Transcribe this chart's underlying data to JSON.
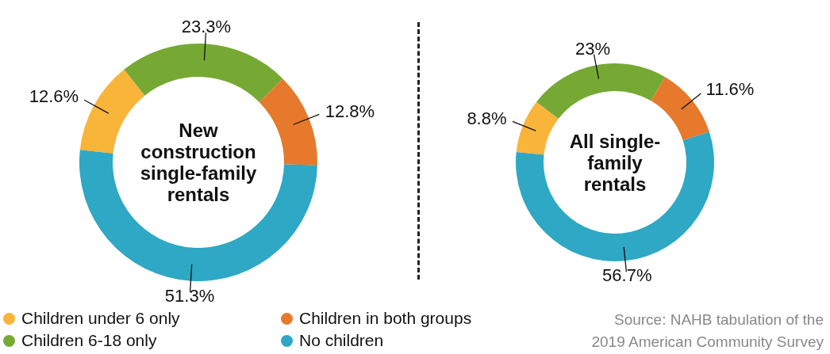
{
  "chart_data": [
    {
      "type": "donut",
      "title": "New construction single-family rentals",
      "categories": [
        "Children under 6 only",
        "Children 6-18 only",
        "Children in both groups",
        "No children"
      ],
      "values": [
        12.6,
        23.3,
        12.8,
        51.3
      ],
      "colors": [
        "#f9b43a",
        "#76a934",
        "#e6792b",
        "#2ea8c4"
      ],
      "value_labels": [
        "12.6%",
        "23.3%",
        "12.8%",
        "51.3%"
      ],
      "legend": "bottom"
    },
    {
      "type": "donut",
      "title": "All single-family rentals",
      "categories": [
        null,
        null,
        null,
        null
      ],
      "values": [
        8.8,
        23,
        11.6,
        56.7
      ],
      "colors": [
        "#f9b43a",
        "#76a934",
        "#e6792b",
        "#2ea8c4"
      ],
      "value_labels": [
        "8.8%",
        "23%",
        "11.6%",
        "56.7%"
      ],
      "annotations": [
        "Source: NAHB tabulation of the 2019 American Community Survey"
      ]
    }
  ]
}
